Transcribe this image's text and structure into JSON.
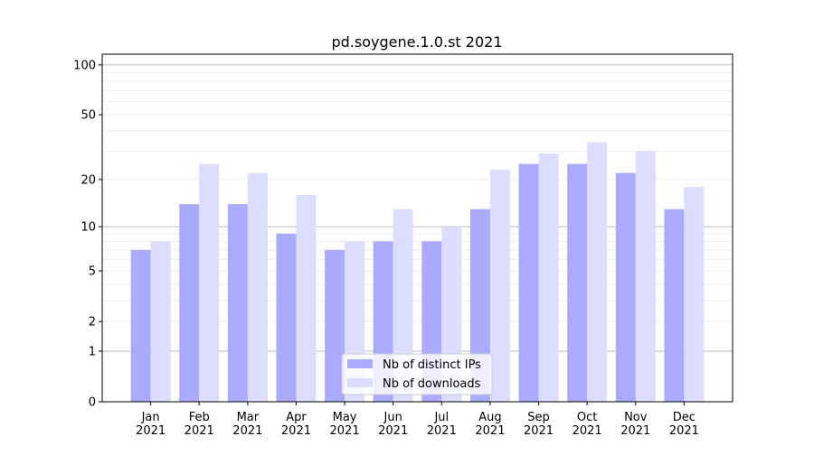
{
  "chart_data": {
    "type": "bar",
    "title": "pd.soygene.1.0.st 2021",
    "xlabel": "",
    "ylabel": "",
    "yscale": "log(1+y)",
    "ylim": [
      0,
      116
    ],
    "yticks": [
      0,
      1,
      2,
      5,
      10,
      20,
      50,
      100
    ],
    "grid": true,
    "legend_position": "bottom-center",
    "categories": [
      "Jan\n2021",
      "Feb\n2021",
      "Mar\n2021",
      "Apr\n2021",
      "May\n2021",
      "Jun\n2021",
      "Jul\n2021",
      "Aug\n2021",
      "Sep\n2021",
      "Oct\n2021",
      "Nov\n2021",
      "Dec\n2021"
    ],
    "series": [
      {
        "name": "Nb of distinct IPs",
        "color": "#aaaaff",
        "values": [
          7,
          14,
          14,
          9,
          7,
          8,
          8,
          13,
          25,
          25,
          22,
          13
        ]
      },
      {
        "name": "Nb of downloads",
        "color": "#ddddff",
        "values": [
          8,
          25,
          22,
          16,
          8,
          13,
          10,
          23,
          29,
          34,
          30,
          18
        ]
      }
    ]
  }
}
